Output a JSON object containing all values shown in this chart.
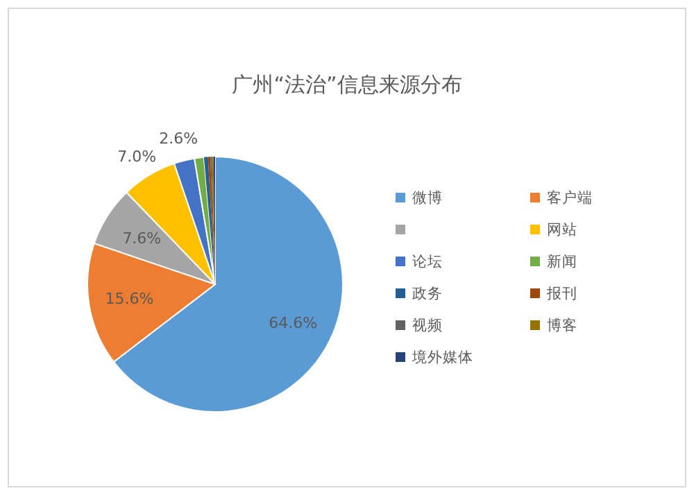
{
  "chart_data": {
    "type": "pie",
    "title": "广州“法治”信息来源分布",
    "categories": [
      "微博",
      "客户端",
      null,
      "网站",
      "论坛",
      "新闻",
      "政务",
      "报刊",
      "视频",
      "博客",
      "境外媒体"
    ],
    "values": [
      64.6,
      15.6,
      7.6,
      7.0,
      2.6,
      1.2,
      0.5,
      0.3,
      0.2,
      0.2,
      0.2
    ],
    "colors": [
      "#5b9bd5",
      "#ed7d31",
      "#a5a5a5",
      "#ffc000",
      "#4472c4",
      "#70ad47",
      "#255e91",
      "#9e480e",
      "#636363",
      "#997300",
      "#264478"
    ],
    "value_labels": [
      "64.6%",
      "15.6%",
      "7.6%",
      "7.0%",
      "2.6%",
      null,
      null,
      null,
      null,
      null,
      null
    ],
    "legend": "right"
  }
}
